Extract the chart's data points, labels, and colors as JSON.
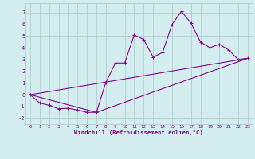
{
  "xlabel": "Windchill (Refroidissement éolien,°C)",
  "bg_color": "#d4eef0",
  "grid_color": "#b0cdd0",
  "line_color": "#8b008b",
  "xlim": [
    -0.5,
    23.5
  ],
  "ylim": [
    -2.5,
    7.8
  ],
  "xticks": [
    0,
    1,
    2,
    3,
    4,
    5,
    6,
    7,
    8,
    9,
    10,
    11,
    12,
    13,
    14,
    15,
    16,
    17,
    18,
    19,
    20,
    21,
    22,
    23
  ],
  "yticks": [
    -2,
    -1,
    0,
    1,
    2,
    3,
    4,
    5,
    6,
    7
  ],
  "line1_x": [
    0,
    1,
    2,
    3,
    4,
    5,
    6,
    7,
    8,
    9,
    10,
    11,
    12,
    13,
    14,
    15,
    16,
    17,
    18,
    19,
    20,
    21,
    22,
    23
  ],
  "line1_y": [
    0.0,
    -0.7,
    -0.9,
    -1.2,
    -1.15,
    -1.3,
    -1.5,
    -1.5,
    1.05,
    2.7,
    2.7,
    5.1,
    4.7,
    3.2,
    3.6,
    6.0,
    7.1,
    6.1,
    4.5,
    4.0,
    4.3,
    3.8,
    3.0,
    3.1
  ],
  "line2_x": [
    0,
    23
  ],
  "line2_y": [
    0.0,
    3.1
  ],
  "line3_x": [
    0,
    7,
    23
  ],
  "line3_y": [
    0.0,
    -1.5,
    3.1
  ]
}
